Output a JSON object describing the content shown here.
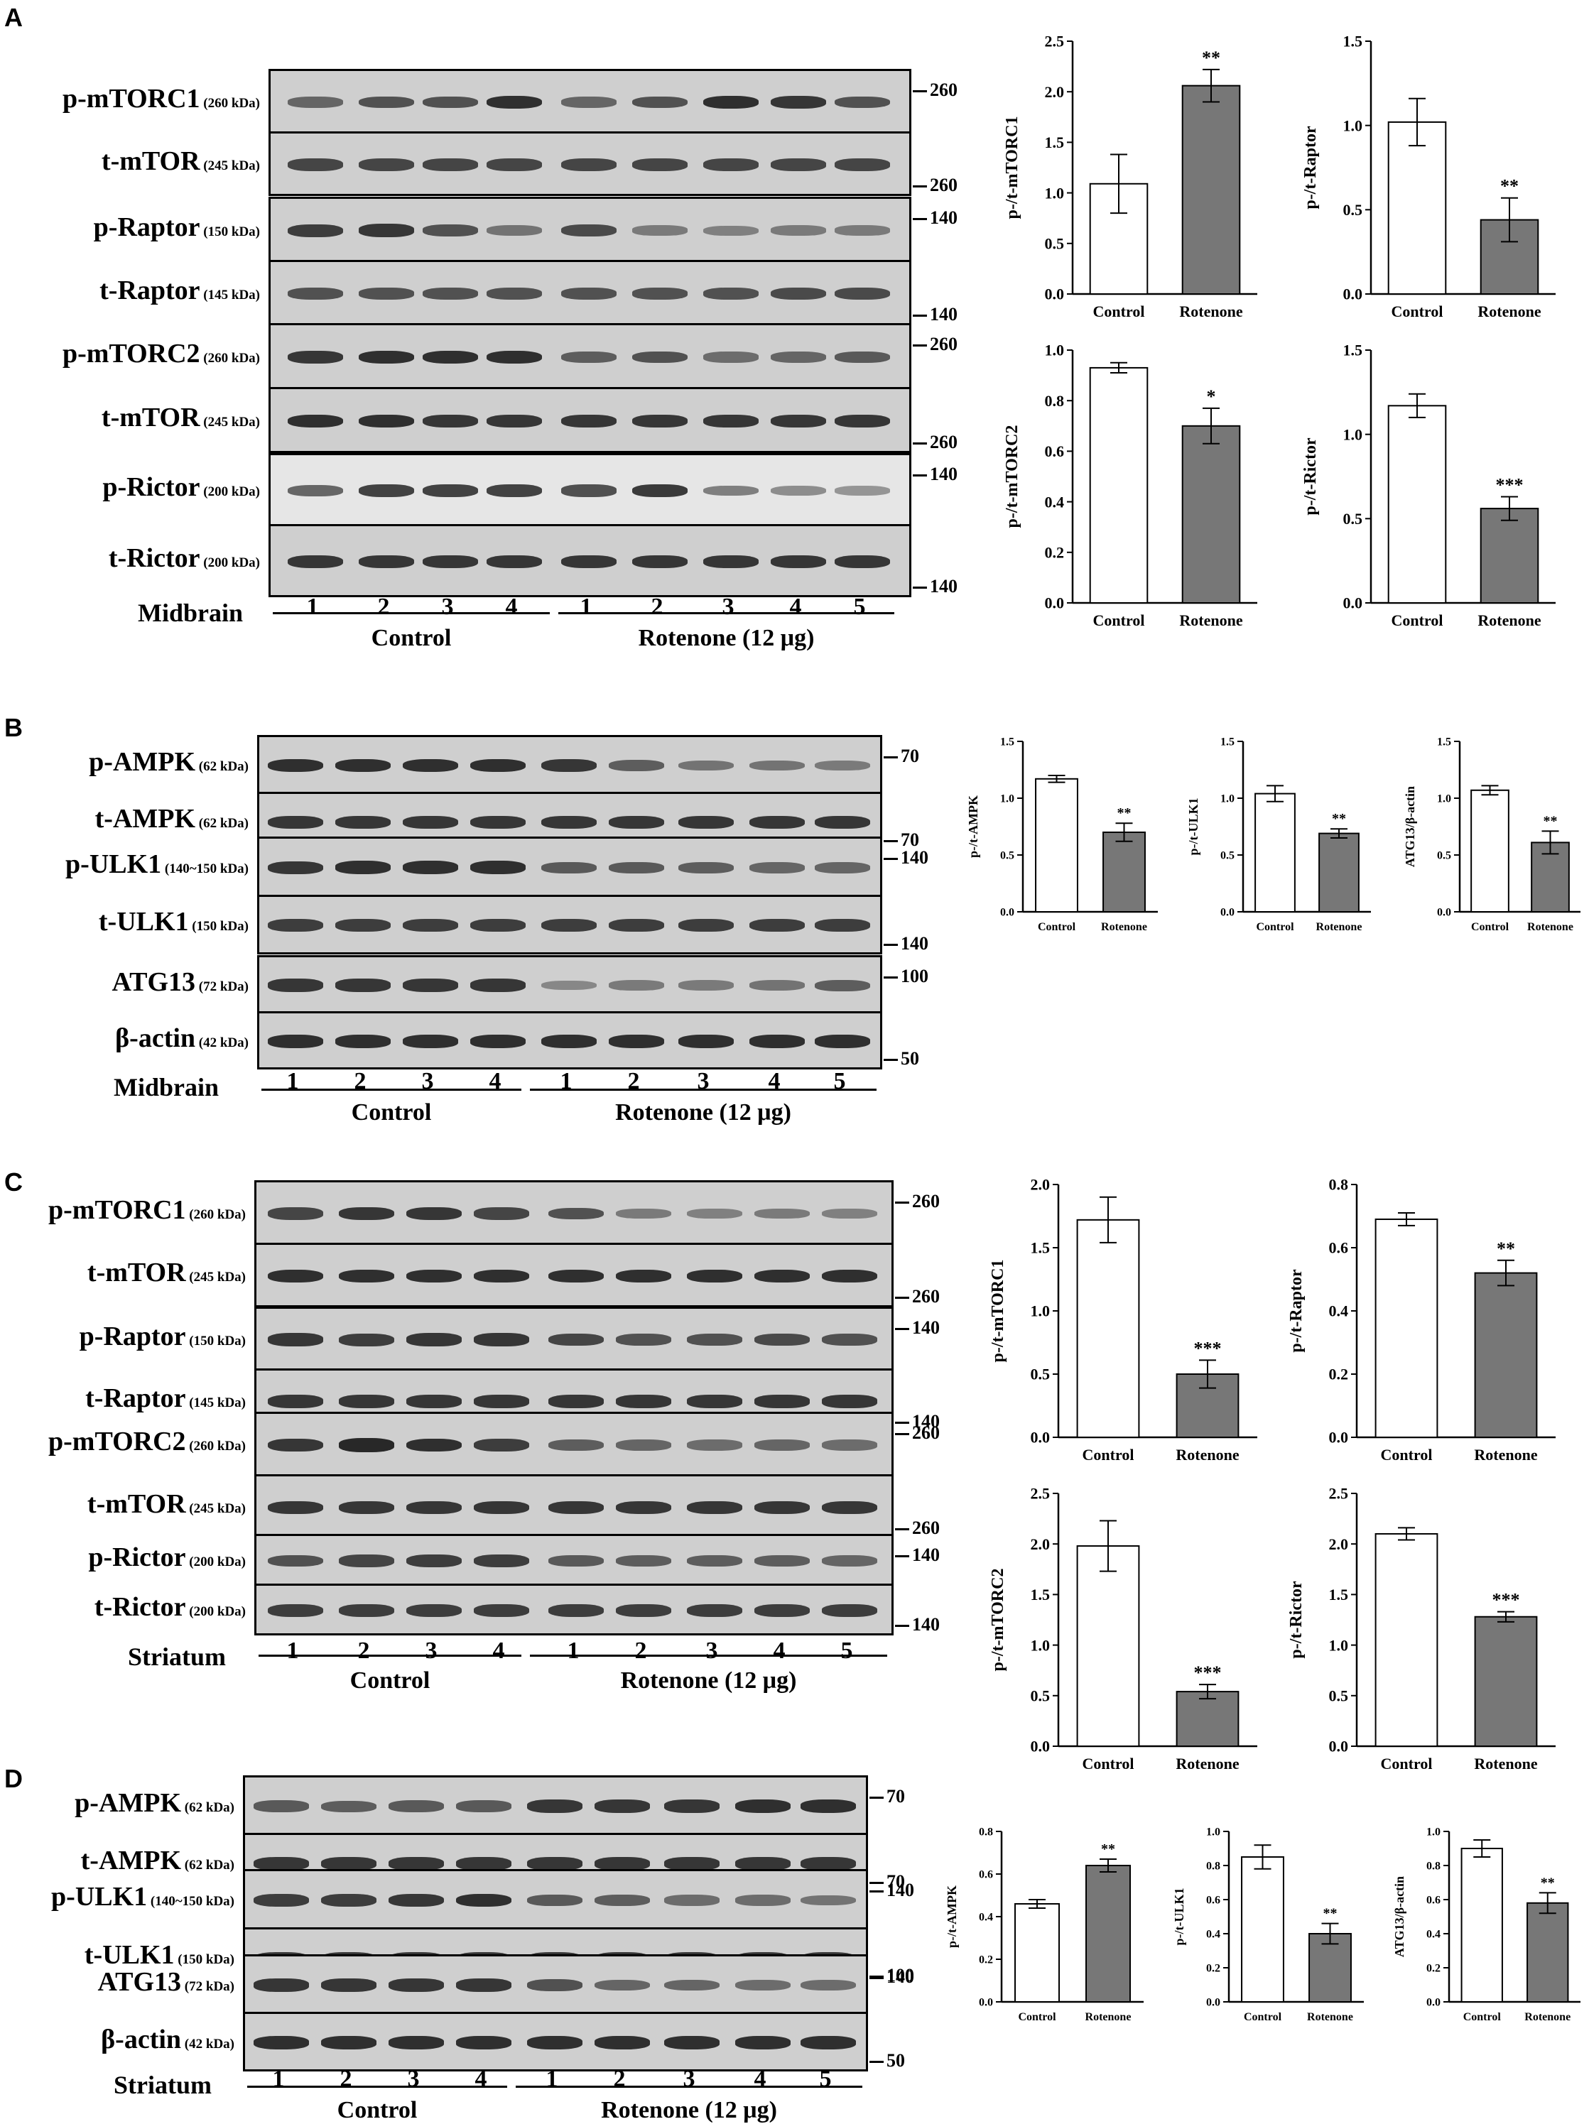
{
  "panels": [
    {
      "id": "A",
      "label": "A",
      "region": "Midbrain",
      "groups": [
        "Control",
        "Rotenone (12 μg)"
      ],
      "lanes": [
        "1",
        "2",
        "3",
        "4",
        "1",
        "2",
        "3",
        "4",
        "5"
      ],
      "rows": [
        {
          "name": "p-mTORC1",
          "kda": "(260 kDa)",
          "mw": "260",
          "intensity": [
            0.45,
            0.6,
            0.6,
            0.85,
            0.45,
            0.6,
            0.85,
            0.8,
            0.6
          ]
        },
        {
          "name": "t-mTOR",
          "kda": "(245 kDa)",
          "mw": "260",
          "intensity": [
            0.7,
            0.7,
            0.7,
            0.7,
            0.7,
            0.7,
            0.7,
            0.7,
            0.7
          ]
        },
        {
          "name": "p-Raptor",
          "kda": "(150 kDa)",
          "mw": "140",
          "intensity": [
            0.75,
            0.8,
            0.6,
            0.35,
            0.65,
            0.3,
            0.25,
            0.3,
            0.3
          ]
        },
        {
          "name": "t-Raptor",
          "kda": "(145 kDa)",
          "mw": "140",
          "intensity": [
            0.6,
            0.6,
            0.6,
            0.6,
            0.6,
            0.6,
            0.6,
            0.65,
            0.65
          ]
        },
        {
          "name": "p-mTORC2",
          "kda": "(260 kDa)",
          "mw": "260",
          "intensity": [
            0.8,
            0.85,
            0.85,
            0.85,
            0.5,
            0.6,
            0.4,
            0.45,
            0.55
          ]
        },
        {
          "name": "t-mTOR",
          "kda": "(245 kDa)",
          "mw": "260",
          "intensity": [
            0.85,
            0.85,
            0.8,
            0.8,
            0.8,
            0.8,
            0.8,
            0.8,
            0.8
          ]
        },
        {
          "name": "p-Rictor",
          "kda": "(200 kDa)",
          "mw": "140",
          "intensity": [
            0.5,
            0.75,
            0.75,
            0.75,
            0.65,
            0.8,
            0.35,
            0.25,
            0.2
          ]
        },
        {
          "name": "t-Rictor",
          "kda": "(200 kDa)",
          "mw": "140",
          "intensity": [
            0.8,
            0.8,
            0.8,
            0.8,
            0.8,
            0.8,
            0.8,
            0.8,
            0.8
          ]
        }
      ]
    },
    {
      "id": "B",
      "label": "B",
      "region": "Midbrain",
      "groups": [
        "Control",
        "Rotenone (12 μg)"
      ],
      "lanes": [
        "1",
        "2",
        "3",
        "4",
        "1",
        "2",
        "3",
        "4",
        "5"
      ],
      "rows": [
        {
          "name": "p-AMPK",
          "kda": "(62 kDa)",
          "mw": "70",
          "intensity": [
            0.85,
            0.85,
            0.85,
            0.85,
            0.8,
            0.5,
            0.35,
            0.35,
            0.3
          ]
        },
        {
          "name": "t-AMPK",
          "kda": "(62 kDa)",
          "mw": "70",
          "intensity": [
            0.8,
            0.8,
            0.8,
            0.8,
            0.8,
            0.8,
            0.8,
            0.8,
            0.8
          ]
        },
        {
          "name": "p-ULK1",
          "kda": "(140~150 kDa)",
          "mw": "140",
          "intensity": [
            0.8,
            0.85,
            0.85,
            0.85,
            0.55,
            0.55,
            0.5,
            0.45,
            0.45
          ]
        },
        {
          "name": "t-ULK1",
          "kda": "(150 kDa)",
          "mw": "140",
          "intensity": [
            0.75,
            0.75,
            0.75,
            0.75,
            0.75,
            0.75,
            0.75,
            0.75,
            0.75
          ]
        },
        {
          "name": "ATG13",
          "kda": "(72 kDa)",
          "mw": "100",
          "intensity": [
            0.8,
            0.8,
            0.8,
            0.8,
            0.2,
            0.3,
            0.3,
            0.35,
            0.5
          ]
        },
        {
          "name": "β-actin",
          "kda": "(42 kDa)",
          "mw": "50",
          "intensity": [
            0.85,
            0.85,
            0.85,
            0.85,
            0.85,
            0.85,
            0.85,
            0.85,
            0.85
          ]
        }
      ]
    },
    {
      "id": "C",
      "label": "C",
      "region": "Striatum",
      "groups": [
        "Control",
        "Rotenone (12 μg)"
      ],
      "lanes": [
        "1",
        "2",
        "3",
        "4",
        "1",
        "2",
        "3",
        "4",
        "5"
      ],
      "rows": [
        {
          "name": "p-mTORC1",
          "kda": "(260 kDa)",
          "mw": "260",
          "intensity": [
            0.7,
            0.8,
            0.8,
            0.7,
            0.6,
            0.3,
            0.25,
            0.3,
            0.25
          ]
        },
        {
          "name": "t-mTOR",
          "kda": "(245 kDa)",
          "mw": "260",
          "intensity": [
            0.85,
            0.85,
            0.85,
            0.85,
            0.85,
            0.85,
            0.85,
            0.85,
            0.85
          ]
        },
        {
          "name": "p-Raptor",
          "kda": "(150 kDa)",
          "mw": "140",
          "intensity": [
            0.8,
            0.75,
            0.8,
            0.8,
            0.7,
            0.6,
            0.6,
            0.65,
            0.6
          ]
        },
        {
          "name": "t-Raptor",
          "kda": "(145 kDa)",
          "mw": "140",
          "intensity": [
            0.8,
            0.8,
            0.8,
            0.8,
            0.8,
            0.8,
            0.8,
            0.8,
            0.8
          ]
        },
        {
          "name": "p-mTORC2",
          "kda": "(260 kDa)",
          "mw": "260",
          "intensity": [
            0.8,
            0.9,
            0.85,
            0.75,
            0.5,
            0.45,
            0.4,
            0.45,
            0.4
          ]
        },
        {
          "name": "t-mTOR",
          "kda": "(245 kDa)",
          "mw": "260",
          "intensity": [
            0.8,
            0.8,
            0.8,
            0.8,
            0.8,
            0.8,
            0.8,
            0.8,
            0.8
          ]
        },
        {
          "name": "p-Rictor",
          "kda": "(200 kDa)",
          "mw": "140",
          "intensity": [
            0.6,
            0.7,
            0.75,
            0.75,
            0.55,
            0.5,
            0.5,
            0.5,
            0.45
          ]
        },
        {
          "name": "t-Rictor",
          "kda": "(200 kDa)",
          "mw": "140",
          "intensity": [
            0.75,
            0.75,
            0.75,
            0.75,
            0.75,
            0.75,
            0.75,
            0.75,
            0.75
          ]
        }
      ]
    },
    {
      "id": "D",
      "label": "D",
      "region": "Striatum",
      "groups": [
        "Control",
        "Rotenone (12 μg)"
      ],
      "lanes": [
        "1",
        "2",
        "3",
        "4",
        "1",
        "2",
        "3",
        "4",
        "5"
      ],
      "rows": [
        {
          "name": "p-AMPK",
          "kda": "(62 kDa)",
          "mw": "70",
          "intensity": [
            0.55,
            0.5,
            0.55,
            0.55,
            0.8,
            0.8,
            0.8,
            0.85,
            0.85
          ]
        },
        {
          "name": "t-AMPK",
          "kda": "(62 kDa)",
          "mw": "70",
          "intensity": [
            0.8,
            0.8,
            0.8,
            0.8,
            0.8,
            0.8,
            0.8,
            0.8,
            0.8
          ]
        },
        {
          "name": "p-ULK1",
          "kda": "(140~150 kDa)",
          "mw": "140",
          "intensity": [
            0.75,
            0.75,
            0.8,
            0.85,
            0.55,
            0.5,
            0.4,
            0.4,
            0.35
          ]
        },
        {
          "name": "t-ULK1",
          "kda": "(150 kDa)",
          "mw": "140",
          "intensity": [
            0.8,
            0.8,
            0.8,
            0.8,
            0.8,
            0.8,
            0.8,
            0.8,
            0.8
          ]
        },
        {
          "name": "ATG13",
          "kda": "(72 kDa)",
          "mw": "100",
          "intensity": [
            0.8,
            0.8,
            0.8,
            0.8,
            0.6,
            0.45,
            0.45,
            0.4,
            0.4
          ]
        },
        {
          "name": "β-actin",
          "kda": "(42 kDa)",
          "mw": "50",
          "intensity": [
            0.85,
            0.85,
            0.85,
            0.85,
            0.85,
            0.85,
            0.85,
            0.85,
            0.85
          ]
        }
      ]
    }
  ],
  "chart_data": [
    {
      "id": "A1",
      "panel": "A",
      "type": "bar",
      "categories": [
        "Control",
        "Rotenone"
      ],
      "values": [
        1.09,
        2.06
      ],
      "errors": [
        0.29,
        0.16
      ],
      "significance": [
        "",
        "**"
      ],
      "ylabel": "p-/t-mTORC1",
      "ylim": [
        0,
        2.5
      ],
      "yticks": [
        "0.0",
        "0.5",
        "1.0",
        "1.5",
        "2.0",
        "2.5"
      ],
      "colors": [
        "#ffffff",
        "#777777"
      ]
    },
    {
      "id": "A2",
      "panel": "A",
      "type": "bar",
      "categories": [
        "Control",
        "Rotenone"
      ],
      "values": [
        1.02,
        0.44
      ],
      "errors": [
        0.14,
        0.13
      ],
      "significance": [
        "",
        "**"
      ],
      "ylabel": "p-/t-Raptor",
      "ylim": [
        0,
        1.5
      ],
      "yticks": [
        "0.0",
        "0.5",
        "1.0",
        "1.5"
      ],
      "colors": [
        "#ffffff",
        "#777777"
      ]
    },
    {
      "id": "A3",
      "panel": "A",
      "type": "bar",
      "categories": [
        "Control",
        "Rotenone"
      ],
      "values": [
        0.93,
        0.7
      ],
      "errors": [
        0.02,
        0.07
      ],
      "significance": [
        "",
        "*"
      ],
      "ylabel": "p-/t-mTORC2",
      "ylim": [
        0,
        1.0
      ],
      "yticks": [
        "0.0",
        "0.2",
        "0.4",
        "0.6",
        "0.8",
        "1.0"
      ],
      "colors": [
        "#ffffff",
        "#777777"
      ]
    },
    {
      "id": "A4",
      "panel": "A",
      "type": "bar",
      "categories": [
        "Control",
        "Rotenone"
      ],
      "values": [
        1.17,
        0.56
      ],
      "errors": [
        0.07,
        0.07
      ],
      "significance": [
        "",
        "***"
      ],
      "ylabel": "p-/t-Rictor",
      "ylim": [
        0,
        1.5
      ],
      "yticks": [
        "0.0",
        "0.5",
        "1.0",
        "1.5"
      ],
      "colors": [
        "#ffffff",
        "#777777"
      ]
    },
    {
      "id": "B1",
      "panel": "B",
      "type": "bar",
      "categories": [
        "Control",
        "Rotenone"
      ],
      "values": [
        1.17,
        0.7
      ],
      "errors": [
        0.03,
        0.08
      ],
      "significance": [
        "",
        "**"
      ],
      "ylabel": "p-/t-AMPK",
      "ylim": [
        0,
        1.5
      ],
      "yticks": [
        "0.0",
        "0.5",
        "1.0",
        "1.5"
      ],
      "colors": [
        "#ffffff",
        "#777777"
      ]
    },
    {
      "id": "B2",
      "panel": "B",
      "type": "bar",
      "categories": [
        "Control",
        "Rotenone"
      ],
      "values": [
        1.04,
        0.69
      ],
      "errors": [
        0.07,
        0.04
      ],
      "significance": [
        "",
        "**"
      ],
      "ylabel": "p-/t-ULK1",
      "ylim": [
        0,
        1.5
      ],
      "yticks": [
        "0.0",
        "0.5",
        "1.0",
        "1.5"
      ],
      "colors": [
        "#ffffff",
        "#777777"
      ]
    },
    {
      "id": "B3",
      "panel": "B",
      "type": "bar",
      "categories": [
        "Control",
        "Rotenone"
      ],
      "values": [
        1.07,
        0.61
      ],
      "errors": [
        0.04,
        0.1
      ],
      "significance": [
        "",
        "**"
      ],
      "ylabel": "ATG13/β-actin",
      "ylim": [
        0,
        1.5
      ],
      "yticks": [
        "0.0",
        "0.5",
        "1.0",
        "1.5"
      ],
      "colors": [
        "#ffffff",
        "#777777"
      ]
    },
    {
      "id": "C1",
      "panel": "C",
      "type": "bar",
      "categories": [
        "Control",
        "Rotenone"
      ],
      "values": [
        1.72,
        0.5
      ],
      "errors": [
        0.18,
        0.11
      ],
      "significance": [
        "",
        "***"
      ],
      "ylabel": "p-/t-mTORC1",
      "ylim": [
        0,
        2.0
      ],
      "yticks": [
        "0.0",
        "0.5",
        "1.0",
        "1.5",
        "2.0"
      ],
      "colors": [
        "#ffffff",
        "#777777"
      ]
    },
    {
      "id": "C2",
      "panel": "C",
      "type": "bar",
      "categories": [
        "Control",
        "Rotenone"
      ],
      "values": [
        0.69,
        0.52
      ],
      "errors": [
        0.02,
        0.04
      ],
      "significance": [
        "",
        "**"
      ],
      "ylabel": "p-/t-Raptor",
      "ylim": [
        0,
        0.8
      ],
      "yticks": [
        "0.0",
        "0.2",
        "0.4",
        "0.6",
        "0.8"
      ],
      "colors": [
        "#ffffff",
        "#777777"
      ]
    },
    {
      "id": "C3",
      "panel": "C",
      "type": "bar",
      "categories": [
        "Control",
        "Rotenone"
      ],
      "values": [
        1.98,
        0.54
      ],
      "errors": [
        0.25,
        0.07
      ],
      "significance": [
        "",
        "***"
      ],
      "ylabel": "p-/t-mTORC2",
      "ylim": [
        0,
        2.5
      ],
      "yticks": [
        "0.0",
        "0.5",
        "1.0",
        "1.5",
        "2.0",
        "2.5"
      ],
      "colors": [
        "#ffffff",
        "#777777"
      ]
    },
    {
      "id": "C4",
      "panel": "C",
      "type": "bar",
      "categories": [
        "Control",
        "Rotenone"
      ],
      "values": [
        2.1,
        1.28
      ],
      "errors": [
        0.06,
        0.05
      ],
      "significance": [
        "",
        "***"
      ],
      "ylabel": "p-/t-Rictor",
      "ylim": [
        0,
        2.5
      ],
      "yticks": [
        "0.0",
        "0.5",
        "1.0",
        "1.5",
        "2.0",
        "2.5"
      ],
      "colors": [
        "#ffffff",
        "#777777"
      ]
    },
    {
      "id": "D1",
      "panel": "D",
      "type": "bar",
      "categories": [
        "Control",
        "Rotenone"
      ],
      "values": [
        0.46,
        0.64
      ],
      "errors": [
        0.02,
        0.03
      ],
      "significance": [
        "",
        "**"
      ],
      "ylabel": "p-/t-AMPK",
      "ylim": [
        0,
        0.8
      ],
      "yticks": [
        "0.0",
        "0.2",
        "0.4",
        "0.6",
        "0.8"
      ],
      "colors": [
        "#ffffff",
        "#777777"
      ]
    },
    {
      "id": "D2",
      "panel": "D",
      "type": "bar",
      "categories": [
        "Control",
        "Rotenone"
      ],
      "values": [
        0.85,
        0.4
      ],
      "errors": [
        0.07,
        0.06
      ],
      "significance": [
        "",
        "**"
      ],
      "ylabel": "p-/t-ULK1",
      "ylim": [
        0,
        1.0
      ],
      "yticks": [
        "0.0",
        "0.2",
        "0.4",
        "0.6",
        "0.8",
        "1.0"
      ],
      "colors": [
        "#ffffff",
        "#777777"
      ]
    },
    {
      "id": "D3",
      "panel": "D",
      "type": "bar",
      "categories": [
        "Control",
        "Rotenone"
      ],
      "values": [
        0.9,
        0.58
      ],
      "errors": [
        0.05,
        0.06
      ],
      "significance": [
        "",
        "**"
      ],
      "ylabel": "ATG13/β-actin",
      "ylim": [
        0,
        1.0
      ],
      "yticks": [
        "0.0",
        "0.2",
        "0.4",
        "0.6",
        "0.8",
        "1.0"
      ],
      "colors": [
        "#ffffff",
        "#777777"
      ]
    }
  ]
}
